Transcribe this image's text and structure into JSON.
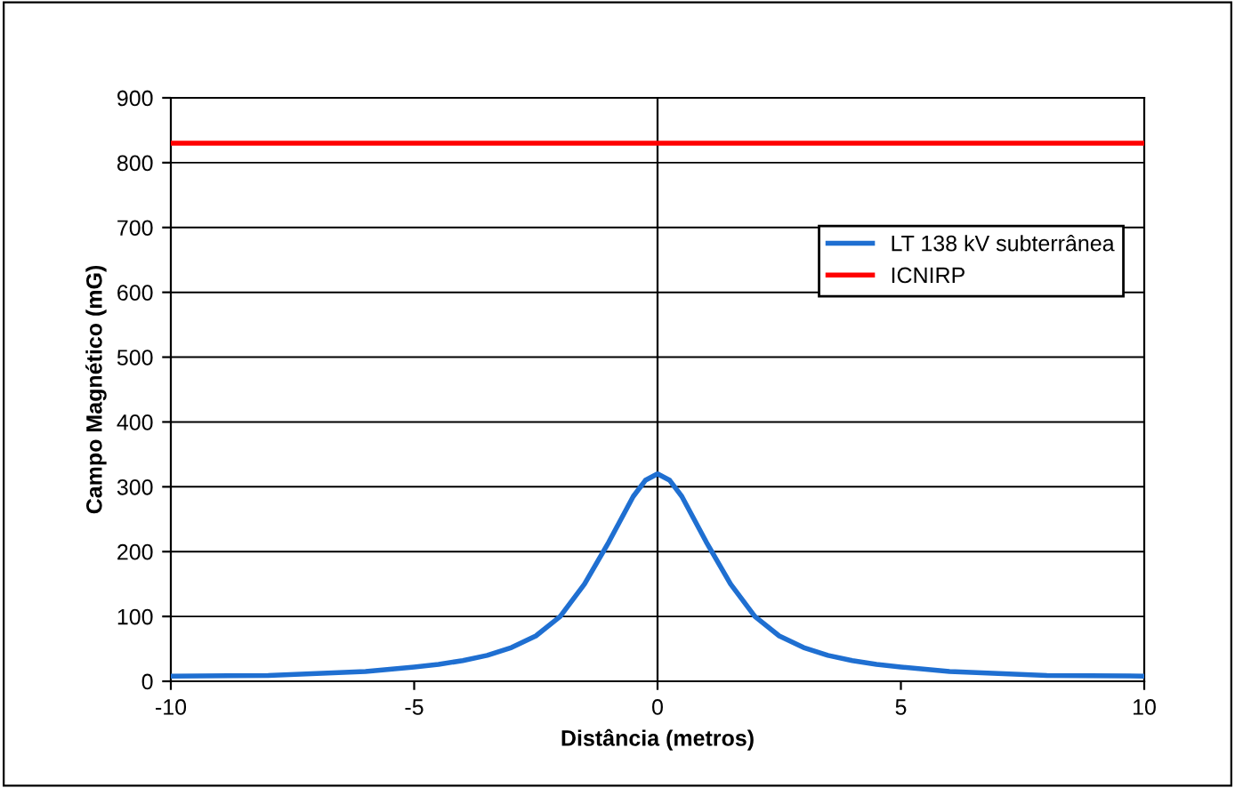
{
  "chart_data": {
    "type": "line",
    "xlabel": "Distância (metros)",
    "ylabel": "Campo Magnético (mG)",
    "xlim": [
      -10,
      10
    ],
    "xticks": [
      -10,
      -5,
      0,
      5,
      10
    ],
    "ylim": [
      0,
      900
    ],
    "yticks": [
      0,
      100,
      200,
      300,
      400,
      500,
      600,
      700,
      800,
      900
    ],
    "grid": "y",
    "legend": "right",
    "marker": "none",
    "line_style": "solid",
    "ref_lines": [
      {
        "axis": "x",
        "value": 0,
        "color": "#000000"
      }
    ],
    "series": [
      {
        "name": "LT 138 kV subterrânea",
        "color": "#1f6fd1",
        "x": [
          -10,
          -8,
          -7,
          -6,
          -5,
          -4.5,
          -4,
          -3.5,
          -3,
          -2.5,
          -2,
          -1.5,
          -1,
          -0.5,
          -0.25,
          0,
          0.25,
          0.5,
          1,
          1.5,
          2,
          2.5,
          3,
          3.5,
          4,
          4.5,
          5,
          6,
          7,
          8,
          10
        ],
        "values": [
          8,
          9,
          12,
          15,
          22,
          26,
          32,
          40,
          52,
          70,
          100,
          150,
          215,
          285,
          310,
          320,
          310,
          285,
          215,
          150,
          100,
          70,
          52,
          40,
          32,
          26,
          22,
          15,
          12,
          9,
          8
        ]
      },
      {
        "name": "ICNIRP",
        "color": "#ff0000",
        "x": [
          -10,
          10
        ],
        "values": [
          830,
          830
        ]
      }
    ]
  }
}
